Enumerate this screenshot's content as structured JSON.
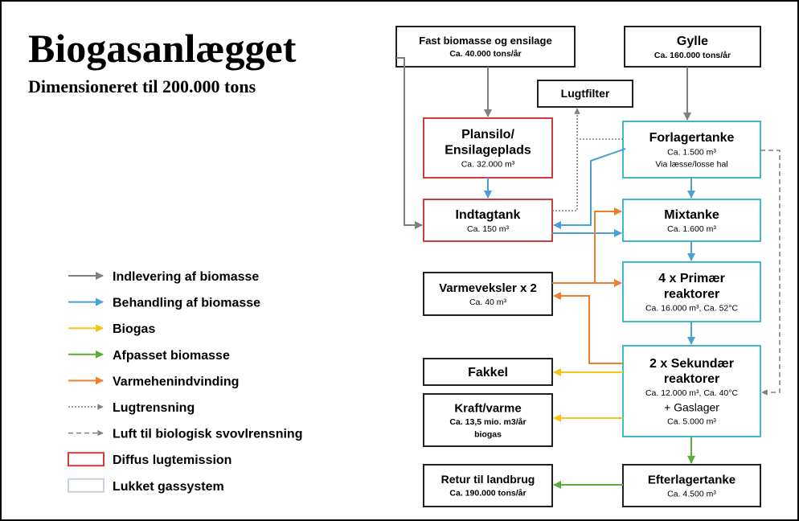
{
  "header": {
    "title": "Biogasanlægget",
    "subtitle": "Dimensioneret til 200.000 tons"
  },
  "legend": [
    {
      "label": "Indlevering af biomasse"
    },
    {
      "label": "Behandling af biomasse"
    },
    {
      "label": "Biogas"
    },
    {
      "label": "Afpasset biomasse"
    },
    {
      "label": "Varmehenindvinding"
    },
    {
      "label": "Lugtrensning"
    },
    {
      "label": "Luft til biologisk svovlrensning"
    },
    {
      "label": "Diffus lugtemission"
    },
    {
      "label": "Lukket gassystem"
    }
  ],
  "nodes": [
    {
      "title": [
        "Fast biomasse og ensilage"
      ],
      "details": [
        "Ca. 40.000 tons/år"
      ]
    },
    {
      "title": [
        "Gylle"
      ],
      "details": [
        "Ca. 160.000 tons/år"
      ]
    },
    {
      "title": [
        "Lugtfilter"
      ],
      "details": []
    },
    {
      "title": [
        "Plansilo/",
        "Ensilageplads"
      ],
      "details": [
        "Ca. 32.000 m³"
      ]
    },
    {
      "title": [
        "Forlagertanke"
      ],
      "details": [
        "Ca. 1.500 m³",
        "Via læsse/losse hal"
      ]
    },
    {
      "title": [
        "Indtagtank"
      ],
      "details": [
        "Ca. 150 m³"
      ]
    },
    {
      "title": [
        "Mixtanke"
      ],
      "details": [
        "Ca. 1.600 m³"
      ]
    },
    {
      "title": [
        "Varmeveksler x 2"
      ],
      "details": [
        "Ca. 40 m³"
      ]
    },
    {
      "title": [
        "4 x Primær",
        "reaktorer"
      ],
      "details": [
        "Ca. 16.000 m³, Ca. 52°C"
      ]
    },
    {
      "title": [
        "Fakkel"
      ],
      "details": []
    },
    {
      "title": [
        "2 x Sekundær",
        "reaktorer"
      ],
      "details": [
        "Ca. 12.000 m³, Ca. 40°C",
        "+ Gaslager",
        "Ca. 5.000 m³"
      ]
    },
    {
      "title": [
        "Kraft/varme"
      ],
      "details": [
        "Ca. 13,5 mio. m3/år",
        "biogas"
      ]
    },
    {
      "title": [
        "Retur til landbrug"
      ],
      "details": [
        "Ca. 190.000 tons/år"
      ]
    },
    {
      "title": [
        "Efterlagertanke"
      ],
      "details": [
        "Ca. 4.500 m³"
      ]
    }
  ]
}
